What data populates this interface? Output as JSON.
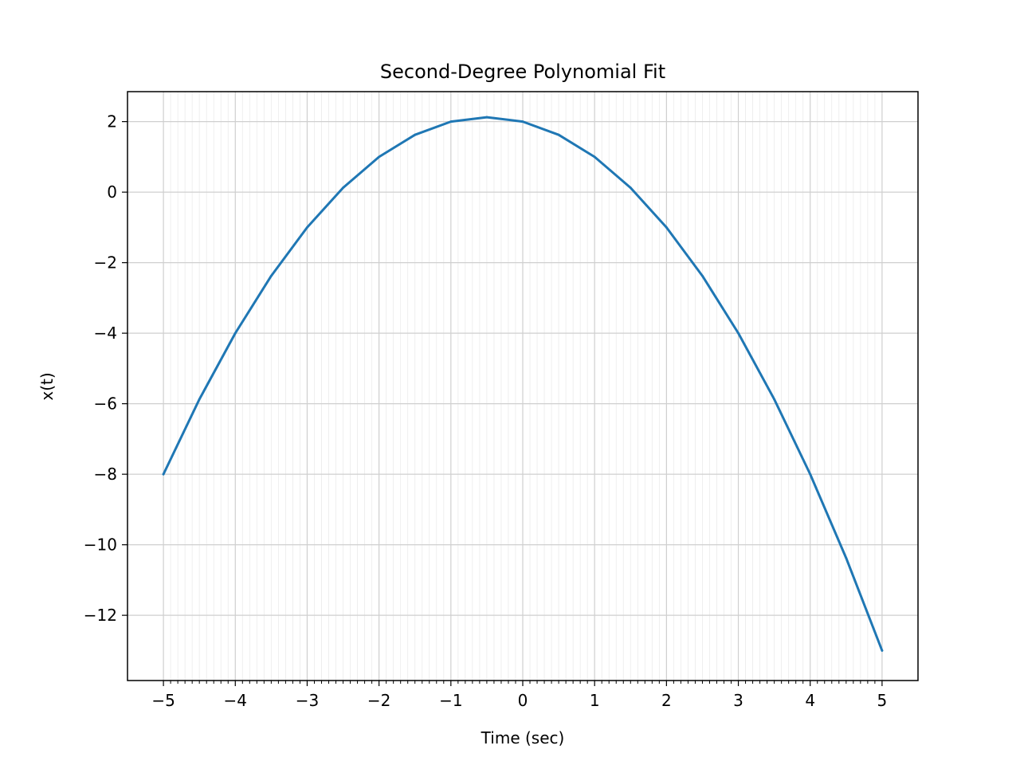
{
  "chart_data": {
    "type": "line",
    "title": "Second-Degree Polynomial Fit",
    "xlabel": "Time (sec)",
    "ylabel": "x(t)",
    "xlim": [
      -5.5,
      5.5
    ],
    "ylim": [
      -13.85,
      2.85
    ],
    "x_ticks": [
      -5,
      -4,
      -3,
      -2,
      -1,
      0,
      1,
      2,
      3,
      4,
      5
    ],
    "x_tick_labels": [
      "−5",
      "−4",
      "−3",
      "−2",
      "−1",
      "0",
      "1",
      "2",
      "3",
      "4",
      "5"
    ],
    "y_ticks": [
      2,
      0,
      -2,
      -4,
      -6,
      -8,
      -10,
      -12
    ],
    "y_tick_labels": [
      "2",
      "0",
      "−2",
      "−4",
      "−6",
      "−8",
      "−10",
      "−12"
    ],
    "x_minor_step": 0.1,
    "grid": "major and minor",
    "series": [
      {
        "color": "#1f77b4",
        "x": [
          -5,
          -4.5,
          -4,
          -3.5,
          -3,
          -2.5,
          -2,
          -1.5,
          -1,
          -0.5,
          0,
          0.5,
          1,
          1.5,
          2,
          2.5,
          3,
          3.5,
          4,
          4.5,
          5
        ],
        "y": [
          -8,
          -5.875,
          -4,
          -2.375,
          -1,
          0.125,
          1,
          1.625,
          2,
          2.125,
          2,
          1.625,
          1,
          0.125,
          -1,
          -2.375,
          -4,
          -5.875,
          -8,
          -10.375,
          -13
        ]
      }
    ]
  }
}
